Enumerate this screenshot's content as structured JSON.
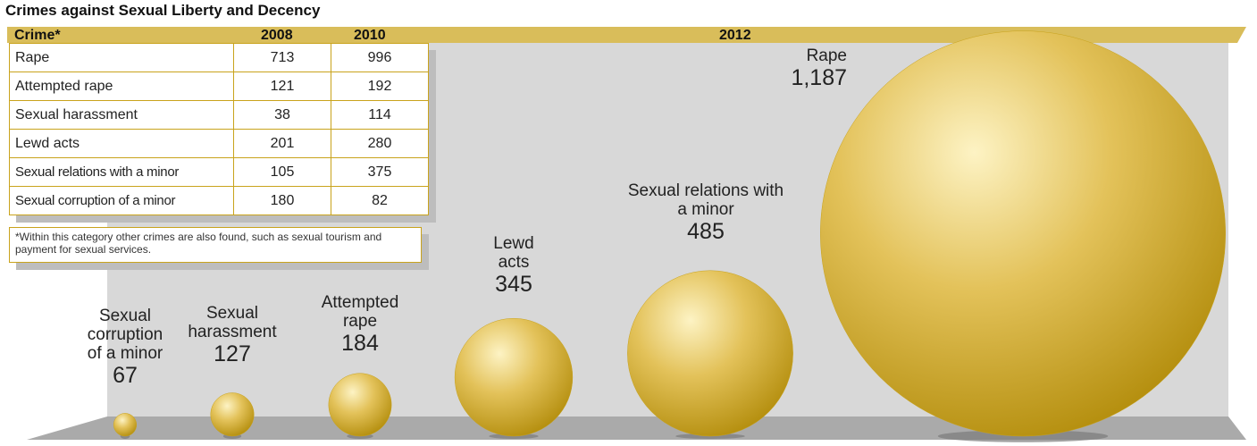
{
  "title": "Crimes against Sexual Liberty and Decency",
  "table": {
    "header": [
      "Crime*",
      "2008",
      "2010"
    ],
    "rows": [
      [
        "Rape",
        713,
        996
      ],
      [
        "Attempted rape",
        121,
        192
      ],
      [
        "Sexual harassment",
        38,
        114
      ],
      [
        "Lewd acts",
        201,
        280
      ],
      [
        "Sexual relations with a minor",
        105,
        375
      ],
      [
        "Sexual corruption of a minor",
        180,
        82
      ]
    ],
    "footnote": "*Within this category other crimes are also found, such as sexual tourism and payment for sexual services."
  },
  "chart_data": {
    "type": "bubble",
    "title": "2012",
    "categories": [
      "Sexual corruption of a minor",
      "Sexual harassment",
      "Attempted rape",
      "Lewd acts",
      "Sexual relations with a minor",
      "Rape"
    ],
    "values": [
      67,
      127,
      184,
      345,
      485,
      1187
    ],
    "value_labels": [
      "67",
      "127",
      "184",
      "345",
      "485",
      "1,187"
    ],
    "color": "#c9a31c"
  }
}
